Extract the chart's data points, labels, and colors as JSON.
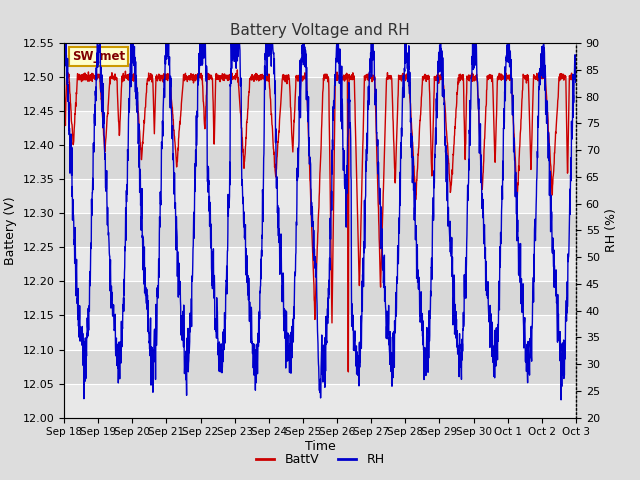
{
  "title": "Battery Voltage and RH",
  "xlabel": "Time",
  "ylabel_left": "Battery (V)",
  "ylabel_right": "RH (%)",
  "ylim_left": [
    12.0,
    12.55
  ],
  "ylim_right": [
    20,
    90
  ],
  "yticks_left": [
    12.0,
    12.05,
    12.1,
    12.15,
    12.2,
    12.25,
    12.3,
    12.35,
    12.4,
    12.45,
    12.5,
    12.55
  ],
  "yticks_right": [
    20,
    25,
    30,
    35,
    40,
    45,
    50,
    55,
    60,
    65,
    70,
    75,
    80,
    85,
    90
  ],
  "xtick_labels": [
    "Sep 18",
    "Sep 19",
    "Sep 20",
    "Sep 21",
    "Sep 22",
    "Sep 23",
    "Sep 24",
    "Sep 25",
    "Sep 26",
    "Sep 27",
    "Sep 28",
    "Sep 29",
    "Sep 30",
    "Oct 1",
    "Oct 2",
    "Oct 3"
  ],
  "legend_label_red": "BattV",
  "legend_label_blue": "RH",
  "annotation_label": "SW_met",
  "annotation_bg": "#ffffcc",
  "annotation_border": "#cc9900",
  "line_color_red": "#cc0000",
  "line_color_blue": "#0000cc",
  "bg_color": "#dddddd",
  "plot_bg_light": "#e8e8e8",
  "plot_bg_dark": "#d0d0d0",
  "grid_color": "#ffffff",
  "title_color": "#333333"
}
